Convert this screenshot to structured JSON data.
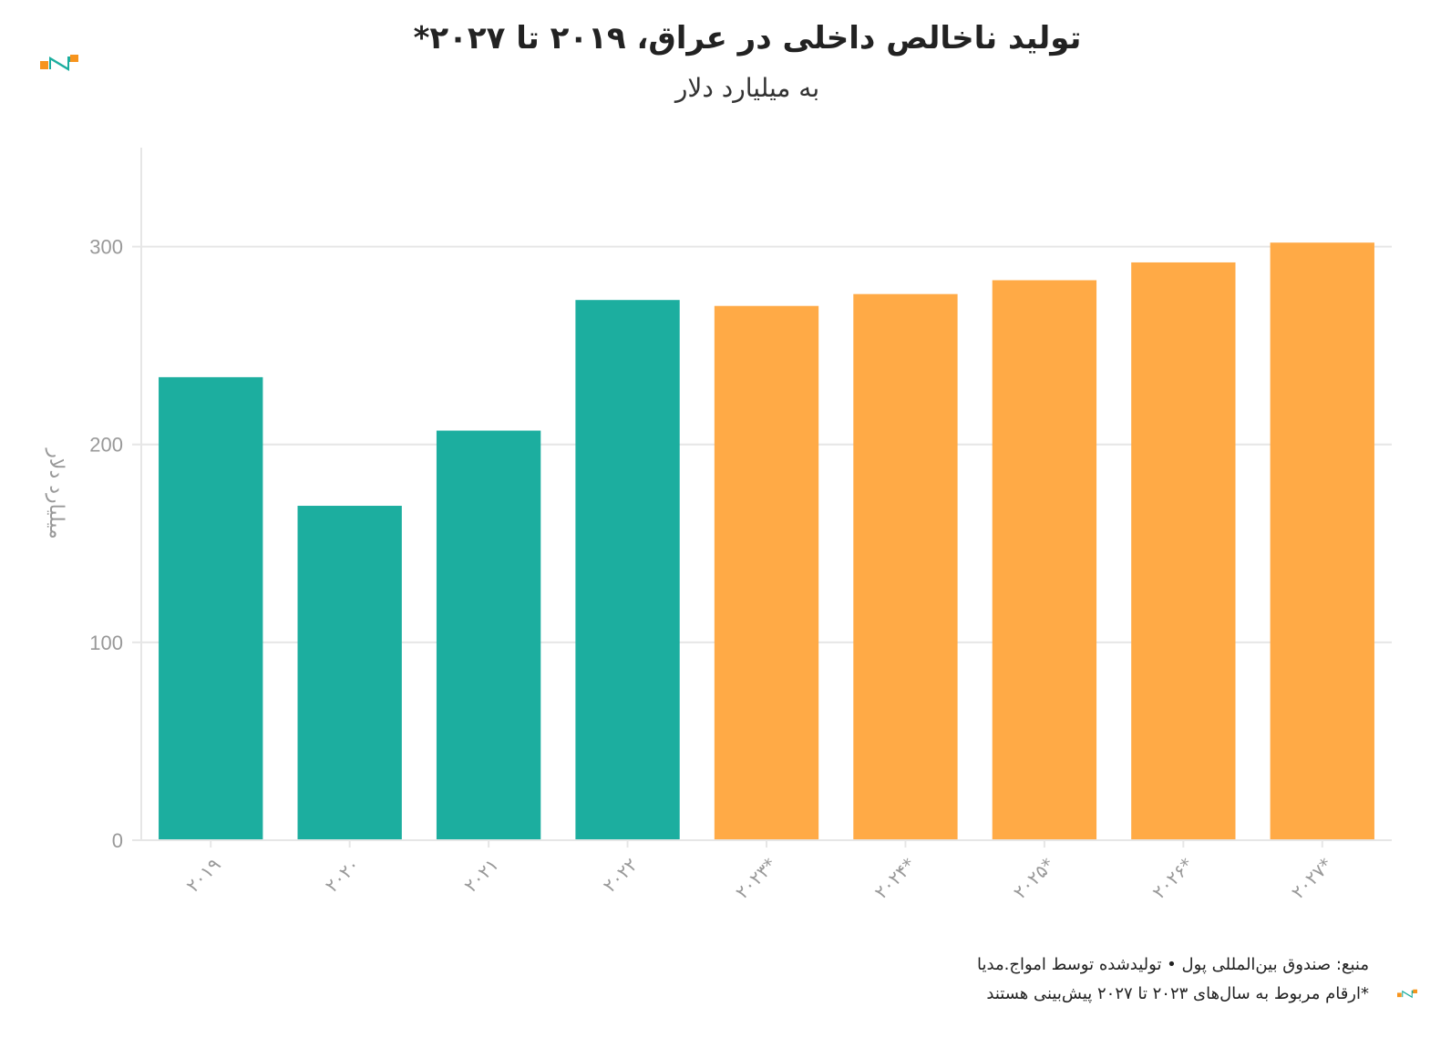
{
  "header": {
    "title": "تولید ناخالص داخلی در عراق، ۲۰۱۹ تا ۲۰۲۷*",
    "subtitle": "به میلیارد دلار"
  },
  "footer": {
    "source": "منبع: صندوق بین‌المللی پول • تولیدشده توسط امواج.مدیا",
    "note": "*ارقام مربوط به سال‌های ۲۰۲۳ تا ۲۰۲۷ پیش‌بینی هستند"
  },
  "colors": {
    "actual": "#1cae9f",
    "forecast": "#ffaa46",
    "grid": "#e6e6e6",
    "axis_text": "#999999",
    "logo_orange": "#f7941d",
    "logo_teal": "#1cae9f"
  },
  "chart_data": {
    "type": "bar",
    "title": "تولید ناخالص داخلی در عراق، ۲۰۱۹ تا ۲۰۲۷*",
    "subtitle": "به میلیارد دلار",
    "xlabel": "",
    "ylabel": "میلیارد دلار",
    "categories": [
      "۲۰۱۹",
      "۲۰۲۰",
      "۲۰۲۱",
      "۲۰۲۲",
      "۲۰۲۳*",
      "۲۰۲۴*",
      "۲۰۲۵*",
      "۲۰۲۶*",
      "۲۰۲۷*"
    ],
    "values": [
      234,
      169,
      207,
      273,
      270,
      276,
      283,
      292,
      302
    ],
    "forecast": [
      false,
      false,
      false,
      false,
      true,
      true,
      true,
      true,
      true
    ],
    "yticks": [
      0,
      100,
      200,
      300
    ],
    "ylim": [
      0,
      350
    ],
    "grid": true,
    "legend": "none"
  }
}
